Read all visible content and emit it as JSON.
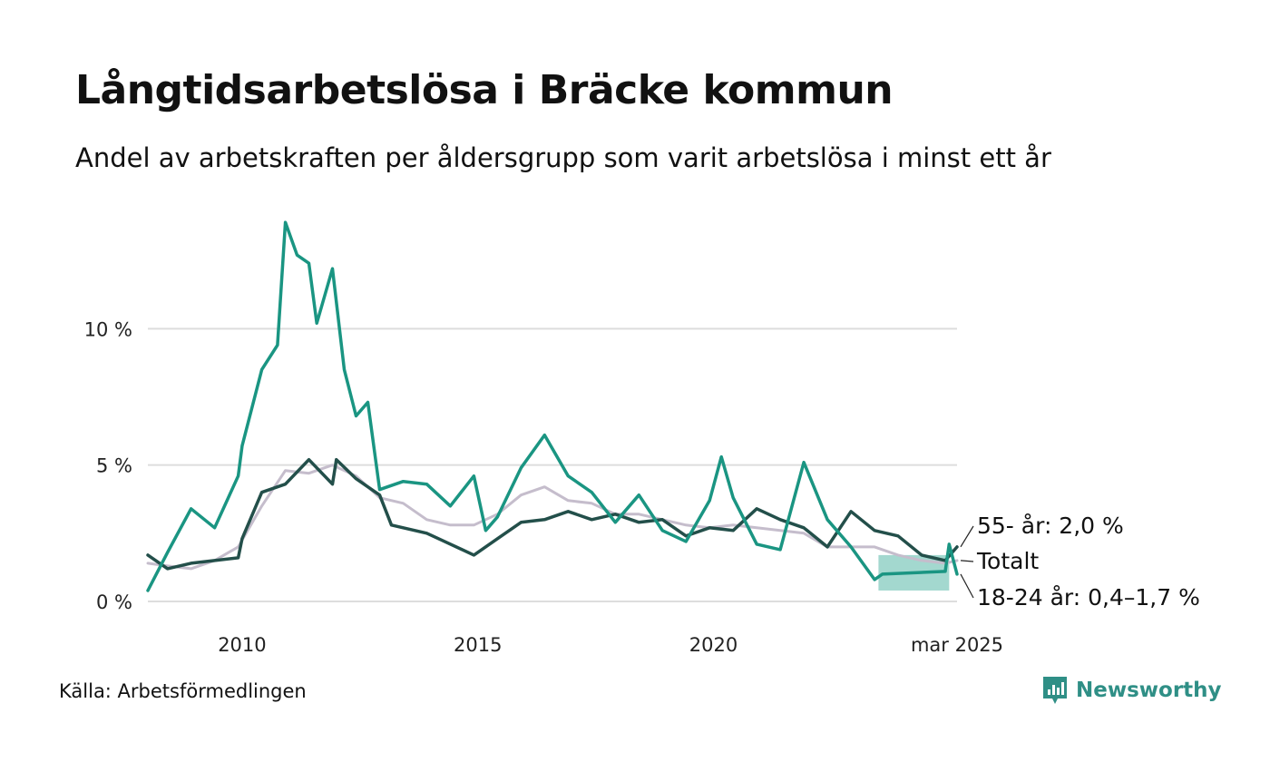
{
  "title": "Långtidsarbetslösa i Bräcke kommun",
  "subtitle": "Andel av arbetskraften per åldersgrupp som varit arbetslösa i minst ett år",
  "source": "Källa: Arbetsförmedlingen",
  "brand": "Newsworthy",
  "colors": {
    "youth": "#1a9582",
    "older": "#234f4a",
    "total": "#c5bdcc",
    "band": "#7cc8bb",
    "grid": "#dddddd",
    "brand": "#2f8f86"
  },
  "chart_data": {
    "type": "line",
    "ylim": [
      0,
      15
    ],
    "xlim": [
      "2008-01",
      "2025-03"
    ],
    "y_ticks": [
      {
        "value": 0,
        "label": "0 %"
      },
      {
        "value": 5,
        "label": "5 %"
      },
      {
        "value": 10,
        "label": "10 %"
      }
    ],
    "x_ticks": [
      {
        "date": "2010-01",
        "label": "2010"
      },
      {
        "date": "2015-01",
        "label": "2015"
      },
      {
        "date": "2020-01",
        "label": "2020"
      },
      {
        "date": "2025-03",
        "label": "mar 2025"
      }
    ],
    "series": [
      {
        "key": "total",
        "name": "Totalt",
        "end_label": "Totalt",
        "points": [
          [
            "2008-01",
            1.4
          ],
          [
            "2008-06",
            1.3
          ],
          [
            "2008-12",
            1.2
          ],
          [
            "2009-06",
            1.5
          ],
          [
            "2009-12",
            2.0
          ],
          [
            "2010-06",
            3.5
          ],
          [
            "2010-12",
            4.8
          ],
          [
            "2011-06",
            4.7
          ],
          [
            "2011-12",
            5.0
          ],
          [
            "2012-06",
            4.6
          ],
          [
            "2012-12",
            3.8
          ],
          [
            "2013-06",
            3.6
          ],
          [
            "2013-12",
            3.0
          ],
          [
            "2014-06",
            2.8
          ],
          [
            "2014-12",
            2.8
          ],
          [
            "2015-06",
            3.2
          ],
          [
            "2015-12",
            3.9
          ],
          [
            "2016-06",
            4.2
          ],
          [
            "2016-12",
            3.7
          ],
          [
            "2017-06",
            3.6
          ],
          [
            "2017-12",
            3.2
          ],
          [
            "2018-06",
            3.2
          ],
          [
            "2018-12",
            3.0
          ],
          [
            "2019-06",
            2.8
          ],
          [
            "2019-12",
            2.7
          ],
          [
            "2020-06",
            2.8
          ],
          [
            "2020-12",
            2.7
          ],
          [
            "2021-06",
            2.6
          ],
          [
            "2021-12",
            2.5
          ],
          [
            "2022-06",
            2.0
          ],
          [
            "2022-12",
            2.0
          ],
          [
            "2023-06",
            2.0
          ],
          [
            "2023-12",
            1.7
          ],
          [
            "2024-06",
            1.5
          ],
          [
            "2024-12",
            1.4
          ],
          [
            "2025-03",
            1.5
          ]
        ]
      },
      {
        "key": "older",
        "name": "55- år",
        "end_label": "55- år: 2,0 %",
        "points": [
          [
            "2008-01",
            1.7
          ],
          [
            "2008-06",
            1.2
          ],
          [
            "2008-12",
            1.4
          ],
          [
            "2009-06",
            1.5
          ],
          [
            "2009-12",
            1.6
          ],
          [
            "2010-01",
            2.3
          ],
          [
            "2010-06",
            4.0
          ],
          [
            "2010-12",
            4.3
          ],
          [
            "2011-06",
            5.2
          ],
          [
            "2011-12",
            4.3
          ],
          [
            "2012-01",
            5.2
          ],
          [
            "2012-06",
            4.5
          ],
          [
            "2012-12",
            3.9
          ],
          [
            "2013-03",
            2.8
          ],
          [
            "2013-12",
            2.5
          ],
          [
            "2014-03",
            2.3
          ],
          [
            "2014-12",
            1.7
          ],
          [
            "2015-06",
            2.3
          ],
          [
            "2015-12",
            2.9
          ],
          [
            "2016-06",
            3.0
          ],
          [
            "2016-12",
            3.3
          ],
          [
            "2017-06",
            3.0
          ],
          [
            "2017-12",
            3.2
          ],
          [
            "2018-06",
            2.9
          ],
          [
            "2018-12",
            3.0
          ],
          [
            "2019-06",
            2.4
          ],
          [
            "2019-12",
            2.7
          ],
          [
            "2020-06",
            2.6
          ],
          [
            "2020-12",
            3.4
          ],
          [
            "2021-06",
            3.0
          ],
          [
            "2021-12",
            2.7
          ],
          [
            "2022-06",
            2.0
          ],
          [
            "2022-12",
            3.3
          ],
          [
            "2023-06",
            2.6
          ],
          [
            "2023-12",
            2.4
          ],
          [
            "2024-06",
            1.7
          ],
          [
            "2024-12",
            1.5
          ],
          [
            "2025-03",
            2.0
          ]
        ]
      },
      {
        "key": "youth",
        "name": "18-24 år",
        "end_label": "18-24 år: 0,4–1,7 %",
        "points": [
          [
            "2008-01",
            0.4
          ],
          [
            "2008-06",
            1.8
          ],
          [
            "2008-12",
            3.4
          ],
          [
            "2009-06",
            2.7
          ],
          [
            "2009-12",
            4.6
          ],
          [
            "2010-01",
            5.7
          ],
          [
            "2010-06",
            8.5
          ],
          [
            "2010-10",
            9.4
          ],
          [
            "2010-12",
            13.9
          ],
          [
            "2011-03",
            12.7
          ],
          [
            "2011-06",
            12.4
          ],
          [
            "2011-08",
            10.2
          ],
          [
            "2011-12",
            12.2
          ],
          [
            "2012-03",
            8.5
          ],
          [
            "2012-06",
            6.8
          ],
          [
            "2012-09",
            7.3
          ],
          [
            "2012-12",
            4.1
          ],
          [
            "2013-06",
            4.4
          ],
          [
            "2013-12",
            4.3
          ],
          [
            "2014-06",
            3.5
          ],
          [
            "2014-12",
            4.6
          ],
          [
            "2015-03",
            2.6
          ],
          [
            "2015-06",
            3.1
          ],
          [
            "2015-12",
            4.9
          ],
          [
            "2016-06",
            6.1
          ],
          [
            "2016-12",
            4.6
          ],
          [
            "2017-06",
            4.0
          ],
          [
            "2017-12",
            2.9
          ],
          [
            "2018-06",
            3.9
          ],
          [
            "2018-12",
            2.6
          ],
          [
            "2019-06",
            2.2
          ],
          [
            "2019-12",
            3.7
          ],
          [
            "2020-03",
            5.3
          ],
          [
            "2020-06",
            3.8
          ],
          [
            "2020-12",
            2.1
          ],
          [
            "2021-06",
            1.9
          ],
          [
            "2021-12",
            5.1
          ],
          [
            "2022-06",
            3.0
          ],
          [
            "2022-12",
            2.0
          ],
          [
            "2023-06",
            0.8
          ],
          [
            "2023-08",
            1.0
          ],
          [
            "2024-12",
            1.1
          ],
          [
            "2025-01",
            2.1
          ],
          [
            "2025-03",
            1.0
          ]
        ],
        "range_band": {
          "from": "2023-07",
          "to": "2025-01",
          "low": 0.4,
          "high": 1.7
        }
      }
    ]
  }
}
